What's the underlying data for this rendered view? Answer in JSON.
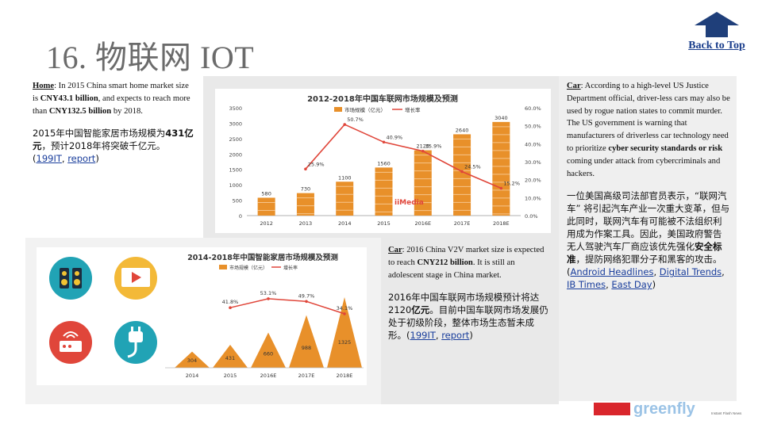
{
  "slide": {
    "title": "16. 物联网 IOT",
    "back_to_top": "Back to Top"
  },
  "home": {
    "label": "Home",
    "t1": ": In 2015 China smart home market size is ",
    "b1": "CNY43.1 billion",
    "t2": ", and expects to reach more than ",
    "b2": "CNY132.5 billion",
    "t3": " by 2018.",
    "cn1": "2015年中国智能家居市场规模为",
    "cn_b": "431亿元",
    "cn2": "，预计2018年将突破千亿元。",
    "src_open": "(",
    "link1": "199IT",
    "sep": ", ",
    "link2": "report",
    "src_close": ")"
  },
  "car_v2v": {
    "label": "Car",
    "t1": ": 2016 China V2V market size is expected to reach ",
    "b1": "CNY212 billion",
    "t2": ". It is still an adolescent stage in China market.",
    "cn1": "2016年中国车联网市场规模预计将达2120",
    "cn_b": "亿元",
    "cn2": "。目前中国车联网市场发展仍处于初级阶段，整体市场生态暂未成形。",
    "src_open": "(",
    "link1": "199IT",
    "sep": ", ",
    "link2": "report",
    "src_close": ")"
  },
  "car_security": {
    "label": "Car",
    "t1": ": According to a high-level US Justice Department official, driver-less cars may also be used by rogue nation states to commit murder. The US government is warning that manufacturers of driverless car technology need to prioritize ",
    "b1": "cyber security standards or risk",
    "t2": " coming under attack from cybercriminals and hackers.",
    "cn1": "一位美国高级司法部官员表示，“联网汽车” 将引起汽车产业一次重大变革，但与此同时，联网汽车有可能被不法组织利用成为作案工具。因此，美国政府警告无人驾驶汽车厂商应该优先强化",
    "cn_b": "安全标准",
    "cn2": "，提防网络犯罪分子和黑客的攻击。",
    "src_open": "(",
    "link1": "Android Headlines",
    "sep1": ", ",
    "link2": "Digital Trends",
    "sep2": ", ",
    "link3": "IB Times",
    "sep3": ", ",
    "link4": "East Day",
    "src_close": ")"
  },
  "colors": {
    "bar": "#e8902a",
    "line": "#e0463a",
    "title_gray": "#6b6b6b",
    "link": "#1a3e9c",
    "arrow": "#1f3f7a"
  },
  "chart_data": [
    {
      "type": "bar",
      "title": "2012-2018年中国车联网市场规模及预测",
      "categories": [
        "2012",
        "2013",
        "2014",
        "2015",
        "2016E",
        "2017E",
        "2018E"
      ],
      "series": [
        {
          "name": "市场规模（亿元）",
          "values": [
            580,
            730,
            1100,
            1560,
            2120,
            2640,
            3040
          ]
        },
        {
          "name": "增长率",
          "values": [
            null,
            25.9,
            50.7,
            40.9,
            35.9,
            24.5,
            15.2
          ],
          "axis": "right",
          "render": "line"
        }
      ],
      "value_labels": [
        "580",
        "730",
        "1100",
        "1560",
        "2120",
        "2640",
        "3040"
      ],
      "rate_labels": [
        "",
        "25.9%",
        "50.7%",
        "40.9%",
        "35.9%",
        "24.5%",
        "15.2%"
      ],
      "y_ticks": [
        "0",
        "500",
        "1000",
        "1500",
        "2000",
        "2500",
        "3000",
        "3500"
      ],
      "y2_ticks": [
        "0.0%",
        "10.0%",
        "20.0%",
        "30.0%",
        "40.0%",
        "50.0%",
        "60.0%"
      ],
      "ylim": [
        0,
        3500
      ],
      "y2lim": [
        0,
        60
      ],
      "legend_position": "top-center",
      "watermark": "iiMedia"
    },
    {
      "type": "bar",
      "title": "2014-2018年中国智能家居市场规模及预测",
      "categories": [
        "2014",
        "2015",
        "2016E",
        "2017E",
        "2018E"
      ],
      "series": [
        {
          "name": "市场规模（亿元）",
          "values": [
            304,
            431,
            660,
            988,
            1325
          ]
        },
        {
          "name": "增长率",
          "values": [
            null,
            41.8,
            53.1,
            49.7,
            34.1
          ],
          "axis": "right",
          "render": "line"
        }
      ],
      "value_labels": [
        "304",
        "431",
        "660",
        "988",
        "1325"
      ],
      "rate_labels": [
        "",
        "41.8%",
        "53.1%",
        "49.7%",
        "34.1%"
      ],
      "ylim": [
        0,
        1400
      ],
      "y2lim": [
        0,
        60
      ],
      "legend_position": "top-center"
    }
  ],
  "icons": [
    "speaker-icon",
    "video-play-icon",
    "router-icon",
    "power-plug-icon"
  ]
}
